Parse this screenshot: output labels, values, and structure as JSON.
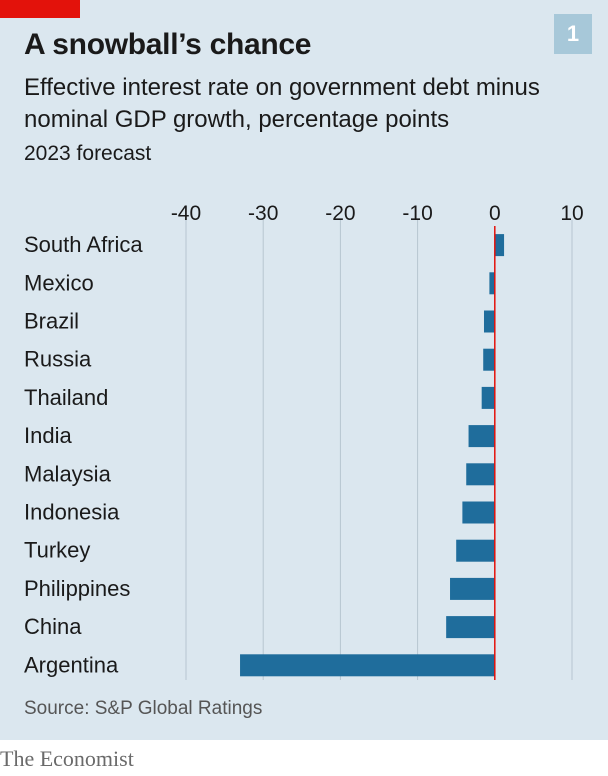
{
  "title": "A snowball’s chance",
  "chart_number": "1",
  "subtitle": "Effective interest rate on government debt minus nominal GDP growth, percentage points",
  "subsubtitle": "2023 forecast",
  "source": "Source: S&P Global Ratings",
  "brand": "The Economist",
  "colors": {
    "bar": "#1f6d9c",
    "zero_line": "#e3120b",
    "grid": "#b7c6d0",
    "background": "#dbe7ef",
    "brand_tag": "#e3120b"
  },
  "chart_data": {
    "type": "bar",
    "orientation": "horizontal",
    "title": "A snowball’s chance",
    "categories": [
      "South Africa",
      "Mexico",
      "Brazil",
      "Russia",
      "Thailand",
      "India",
      "Malaysia",
      "Indonesia",
      "Turkey",
      "Philippines",
      "China",
      "Argentina"
    ],
    "values": [
      1.2,
      -0.7,
      -1.4,
      -1.5,
      -1.7,
      -3.4,
      -3.7,
      -4.2,
      -5.0,
      -5.8,
      -6.3,
      -33.0
    ],
    "xlim": [
      -40,
      10
    ],
    "xticks": [
      "-40",
      "-30",
      "-20",
      "-10",
      "0",
      "10"
    ],
    "xtick_values": [
      -40,
      -30,
      -20,
      -10,
      0,
      10
    ],
    "grid": true,
    "xaxis_position": "top"
  }
}
